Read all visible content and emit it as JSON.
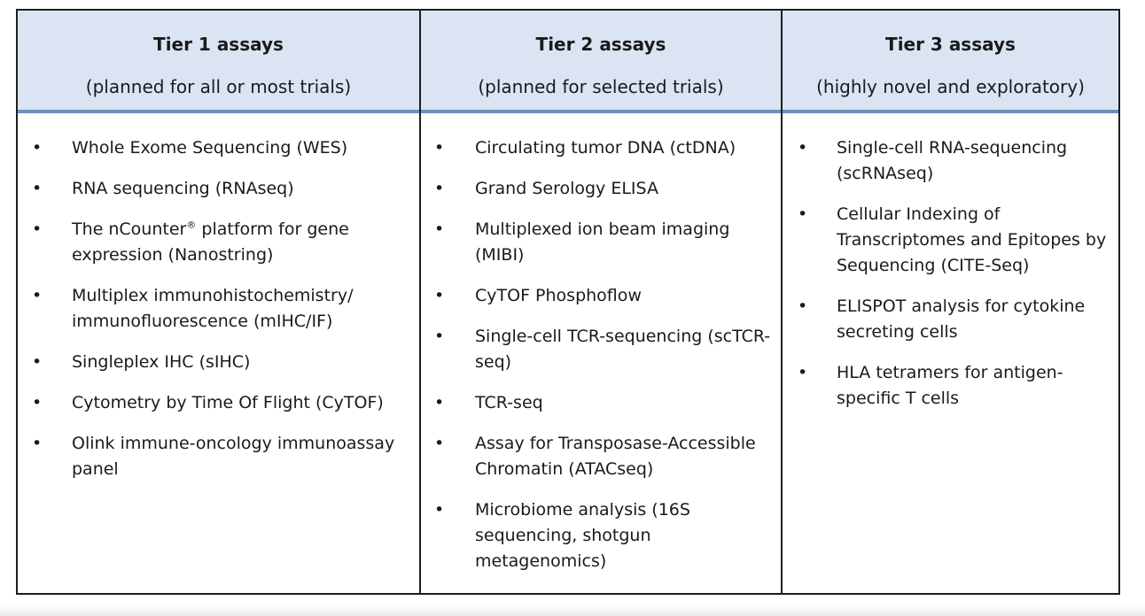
{
  "columns": [
    {
      "title": "Tier 1 assays",
      "subtitle": "(planned for all or most trials)",
      "items": [
        "Whole Exome Sequencing (WES)",
        "RNA sequencing (RNAseq)",
        "The nCounter® platform for gene expression (Nanostring)",
        "Multiplex immunohistochemistry/ immunofluorescence (mIHC/IF)",
        "Singleplex IHC (sIHC)",
        "Cytometry by Time Of Flight (CyTOF)",
        "Olink immune-oncology immunoassay panel"
      ]
    },
    {
      "title": "Tier 2 assays",
      "subtitle": "(planned for selected trials)",
      "items": [
        "Circulating tumor DNA (ctDNA)",
        "Grand Serology ELISA",
        "Multiplexed ion beam imaging (MIBI)",
        "CyTOF Phosphoflow",
        "Single-cell TCR-sequencing (scTCR-seq)",
        "TCR-seq",
        "Assay for Transposase-Accessible Chromatin (ATACseq)",
        "Microbiome analysis (16S sequencing, shotgun metagenomics)"
      ]
    },
    {
      "title": "Tier 3 assays",
      "subtitle": "(highly novel and exploratory)",
      "items": [
        "Single-cell RNA-sequencing (scRNAseq)",
        "Cellular Indexing of Transcriptomes and Epitopes by Sequencing (CITE-Seq)",
        "ELISPOT analysis for cytokine secreting cells",
        "HLA tetramers for antigen-specific T cells"
      ]
    }
  ]
}
